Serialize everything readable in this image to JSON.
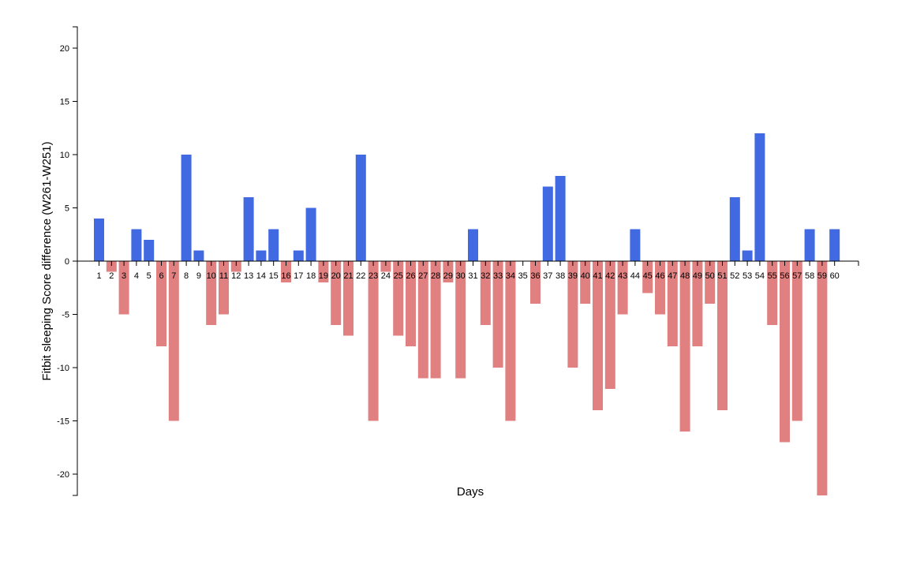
{
  "chart_data": {
    "type": "bar",
    "title": "",
    "xlabel": "Days",
    "ylabel": "Fitbit sleeping Score difference (W261-W251)",
    "ylim": [
      -22,
      22
    ],
    "yticks": [
      20,
      15,
      10,
      5,
      0,
      -5,
      -10,
      -15,
      -20
    ],
    "categories": [
      "1",
      "2",
      "3",
      "4",
      "5",
      "6",
      "7",
      "8",
      "9",
      "10",
      "11",
      "12",
      "13",
      "14",
      "15",
      "16",
      "17",
      "18",
      "19",
      "20",
      "21",
      "22",
      "23",
      "24",
      "25",
      "26",
      "27",
      "28",
      "29",
      "30",
      "31",
      "32",
      "33",
      "34",
      "35",
      "36",
      "37",
      "38",
      "39",
      "40",
      "41",
      "42",
      "43",
      "44",
      "45",
      "46",
      "47",
      "48",
      "49",
      "50",
      "51",
      "52",
      "53",
      "54",
      "55",
      "56",
      "57",
      "58",
      "59",
      "60"
    ],
    "values": [
      4,
      -1,
      -5,
      3,
      2,
      -8,
      -15,
      10,
      1,
      -6,
      -5,
      -1,
      6,
      1,
      3,
      -2,
      1,
      5,
      -2,
      -6,
      -7,
      10,
      -15,
      -1,
      -7,
      -8,
      -11,
      -11,
      -2,
      -11,
      3,
      -6,
      -10,
      -15,
      0,
      -4,
      7,
      8,
      -10,
      -4,
      -14,
      -12,
      -5,
      3,
      -3,
      -5,
      -8,
      -16,
      -8,
      -4,
      -14,
      6,
      1,
      12,
      -6,
      -17,
      -15,
      3,
      -22,
      3
    ],
    "colors": {
      "positive": "#4169E1",
      "negative": "#E08080"
    },
    "grid": false,
    "legend": "none"
  }
}
